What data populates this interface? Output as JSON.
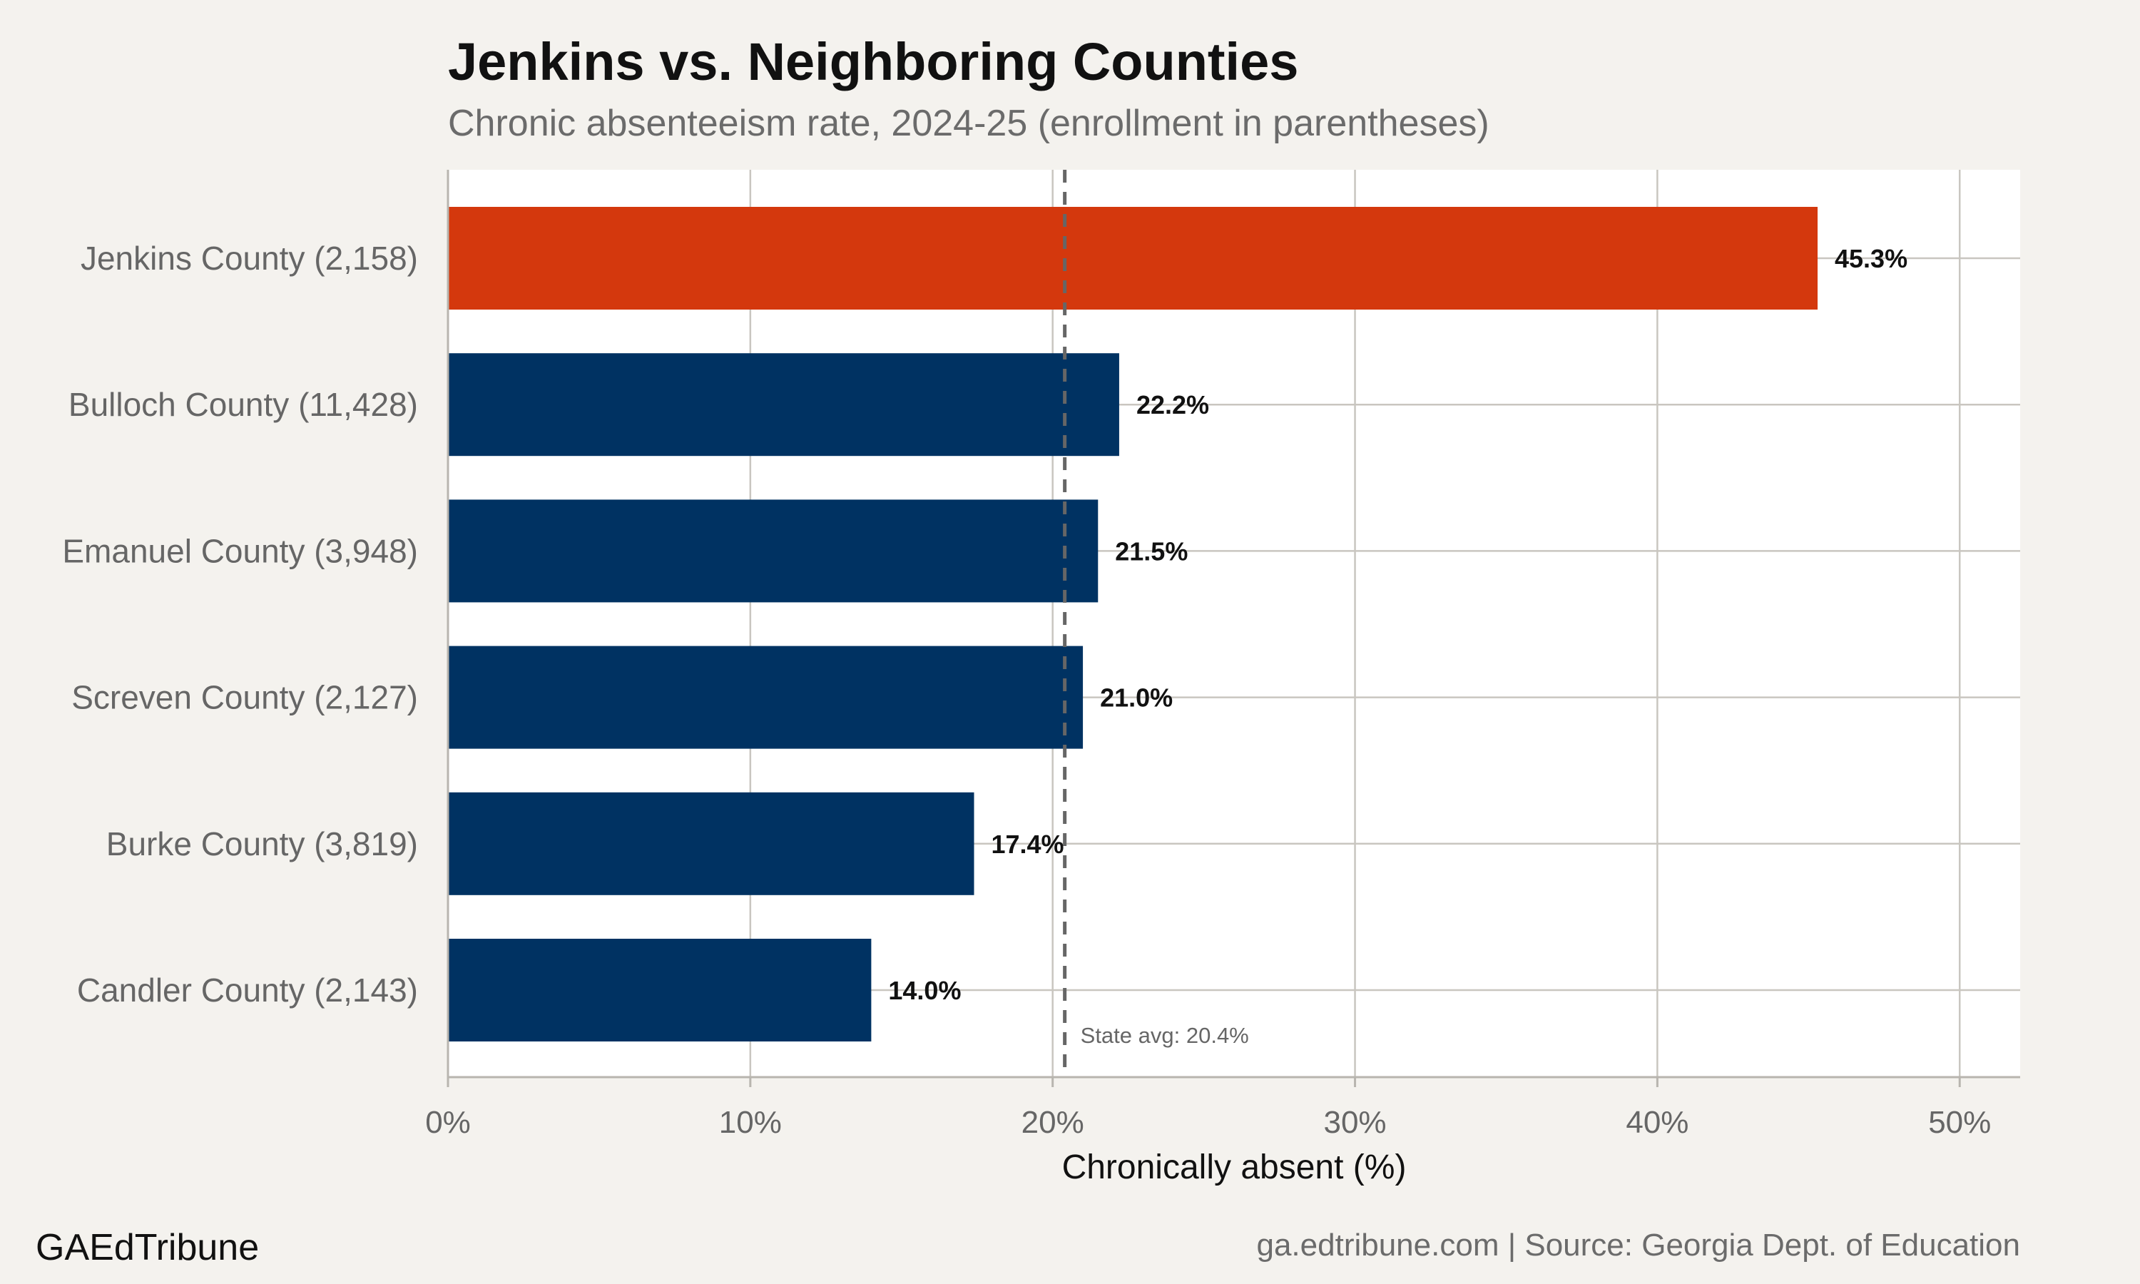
{
  "chart_data": {
    "type": "bar",
    "orientation": "horizontal",
    "title": "Jenkins vs. Neighboring Counties",
    "subtitle": "Chronic absenteeism rate, 2024-25 (enrollment in parentheses)",
    "xlabel": "Chronically absent (%)",
    "ylabel": "",
    "xlim": [
      0,
      52
    ],
    "x_ticks": [
      0,
      10,
      20,
      30,
      40,
      50
    ],
    "x_tick_labels": [
      "0%",
      "10%",
      "20%",
      "30%",
      "40%",
      "50%"
    ],
    "categories": [
      "Jenkins County (2,158)",
      "Bulloch County (11,428)",
      "Emanuel County (3,948)",
      "Screven County (2,127)",
      "Burke County (3,819)",
      "Candler County (2,143)"
    ],
    "values": [
      45.3,
      22.2,
      21.5,
      21.0,
      17.4,
      14.0
    ],
    "value_labels": [
      "45.3%",
      "22.2%",
      "21.5%",
      "21.0%",
      "17.4%",
      "14.0%"
    ],
    "highlight_index": 0,
    "colors": {
      "highlight": "#d4380d",
      "default": "#003262",
      "background": "#f4f2ee",
      "panel": "#ffffff",
      "grid": "#c9c6c0",
      "reference_line": "#666666"
    },
    "reference_line": {
      "value": 20.4,
      "label": "State avg: 20.4%",
      "style": "dashed"
    },
    "grid": true,
    "legend": "none"
  },
  "footer": {
    "brand": "GAEdTribune",
    "source": "ga.edtribune.com | Source: Georgia Dept. of Education"
  }
}
